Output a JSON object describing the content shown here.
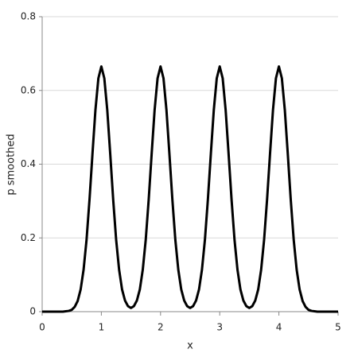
{
  "chart_data": {
    "type": "line",
    "x_label": "x",
    "y_label": "p smoothed",
    "x": [
      0,
      0.05,
      0.1,
      0.15,
      0.2,
      0.25,
      0.3,
      0.35,
      0.4,
      0.45,
      0.5,
      0.55,
      0.6,
      0.65,
      0.7,
      0.75,
      0.8,
      0.85,
      0.9,
      0.95,
      1,
      1.05,
      1.1,
      1.15,
      1.2,
      1.25,
      1.3,
      1.35,
      1.4,
      1.45,
      1.5,
      1.55,
      1.6,
      1.65,
      1.7,
      1.75,
      1.8,
      1.85,
      1.9,
      1.95,
      2,
      2.05,
      2.1,
      2.15,
      2.2,
      2.25,
      2.3,
      2.35,
      2.4,
      2.45,
      2.5,
      2.55,
      2.6,
      2.65,
      2.7,
      2.75,
      2.8,
      2.85,
      2.9,
      2.95,
      3,
      3.05,
      3.1,
      3.15,
      3.2,
      3.25,
      3.3,
      3.35,
      3.4,
      3.45,
      3.5,
      3.55,
      3.6,
      3.65,
      3.7,
      3.75,
      3.8,
      3.85,
      3.9,
      3.95,
      4,
      4.05,
      4.1,
      4.15,
      4.2,
      4.25,
      4.3,
      4.35,
      4.4,
      4.45,
      4.5,
      4.55,
      4.6,
      4.65,
      4.7,
      4.75,
      4.8,
      4.85,
      4.9,
      4.95,
      5
    ],
    "series": [
      {
        "color": "#000000",
        "values": [
          0,
          0,
          0,
          0,
          0,
          0,
          0,
          0,
          0.001,
          0.002,
          0.005,
          0.013,
          0.029,
          0.06,
          0.114,
          0.195,
          0.304,
          0.428,
          0.547,
          0.633,
          0.665,
          0.633,
          0.547,
          0.428,
          0.304,
          0.195,
          0.114,
          0.06,
          0.03,
          0.015,
          0.01,
          0.015,
          0.03,
          0.06,
          0.114,
          0.195,
          0.304,
          0.428,
          0.547,
          0.633,
          0.665,
          0.633,
          0.547,
          0.428,
          0.304,
          0.195,
          0.114,
          0.06,
          0.03,
          0.015,
          0.01,
          0.015,
          0.03,
          0.06,
          0.114,
          0.195,
          0.304,
          0.428,
          0.547,
          0.633,
          0.665,
          0.633,
          0.547,
          0.428,
          0.304,
          0.195,
          0.114,
          0.06,
          0.03,
          0.015,
          0.01,
          0.015,
          0.03,
          0.06,
          0.114,
          0.195,
          0.304,
          0.428,
          0.547,
          0.633,
          0.665,
          0.633,
          0.547,
          0.428,
          0.304,
          0.195,
          0.114,
          0.06,
          0.029,
          0.013,
          0.005,
          0.002,
          0.001,
          0,
          0,
          0,
          0,
          0,
          0,
          0,
          0
        ]
      }
    ],
    "xlim": [
      0,
      5
    ],
    "xticks": [
      0,
      1,
      2,
      3,
      4,
      5
    ],
    "ylim": [
      0,
      0.8
    ],
    "yticks": [
      0,
      0.2,
      0.4,
      0.6,
      0.8
    ],
    "grid": true
  }
}
